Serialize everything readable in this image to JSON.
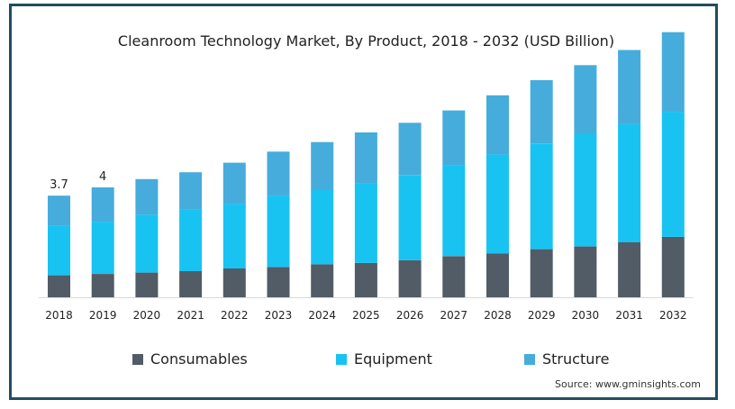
{
  "chart_data": {
    "type": "bar",
    "stacked": true,
    "title": "Cleanroom Technology Market, By Product, 2018 - 2032 (USD Billion)",
    "categories": [
      "2018",
      "2019",
      "2020",
      "2021",
      "2022",
      "2023",
      "2024",
      "2025",
      "2026",
      "2027",
      "2028",
      "2029",
      "2030",
      "2031",
      "2032"
    ],
    "series": [
      {
        "name": "Consumables",
        "color": "#515c66",
        "values": [
          0.8,
          0.85,
          0.9,
          0.95,
          1.05,
          1.1,
          1.2,
          1.25,
          1.35,
          1.5,
          1.6,
          1.75,
          1.85,
          2.0,
          2.2
        ]
      },
      {
        "name": "Equipment",
        "color": "#18c3f2",
        "values": [
          1.8,
          1.9,
          2.1,
          2.25,
          2.35,
          2.6,
          2.7,
          2.9,
          3.1,
          3.3,
          3.6,
          3.85,
          4.1,
          4.3,
          4.55
        ]
      },
      {
        "name": "Structure",
        "color": "#46acdc",
        "values": [
          1.1,
          1.25,
          1.3,
          1.35,
          1.5,
          1.6,
          1.75,
          1.85,
          1.9,
          2.0,
          2.15,
          2.3,
          2.5,
          2.7,
          2.9
        ]
      }
    ],
    "data_labels": [
      {
        "index": 0,
        "text": "3.7"
      },
      {
        "index": 1,
        "text": "4"
      }
    ],
    "ylim": [
      0,
      10.5
    ],
    "grid": false,
    "legend_position": "bottom"
  },
  "source": "Source: www.gminsights.com"
}
